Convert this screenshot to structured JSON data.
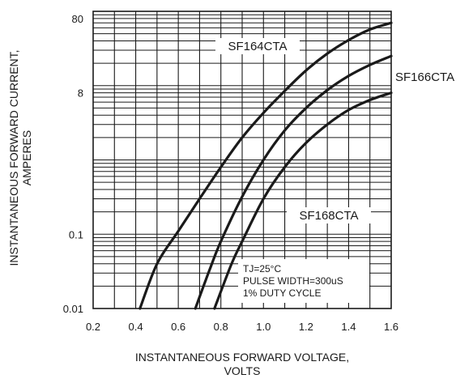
{
  "chart_data": {
    "type": "line",
    "xlabel_lines": [
      "INSTANTANEOUS FORWARD VOLTAGE,",
      "VOLTS"
    ],
    "ylabel_lines": [
      "INSTANTANEOUS FORWARD CURRENT,",
      "AMPERES"
    ],
    "x_ticks": [
      "0.2",
      "0.4",
      "0.6",
      "0.8",
      "1.0",
      "1.2",
      "1.4",
      "1.6"
    ],
    "x_tick_values": [
      0.2,
      0.4,
      0.6,
      0.8,
      1.0,
      1.2,
      1.4,
      1.6
    ],
    "y_ticks": [
      "80",
      "8",
      "0.1",
      "0.01"
    ],
    "y_tick_values": [
      80,
      8,
      0.1,
      0.01
    ],
    "xlim": [
      0.2,
      1.6
    ],
    "y_scale": "log",
    "grid": true,
    "series": [
      {
        "name": "SF164CTA",
        "points": [
          [
            0.42,
            0.01
          ],
          [
            0.5,
            0.04
          ],
          [
            0.6,
            0.11
          ],
          [
            0.7,
            0.3
          ],
          [
            0.8,
            0.8
          ],
          [
            0.9,
            2.0
          ],
          [
            1.0,
            4.3
          ],
          [
            1.1,
            8.5
          ],
          [
            1.2,
            16
          ],
          [
            1.3,
            27
          ],
          [
            1.4,
            41
          ],
          [
            1.5,
            57
          ],
          [
            1.6,
            70
          ]
        ]
      },
      {
        "name": "SF166CTA",
        "points": [
          [
            0.68,
            0.01
          ],
          [
            0.75,
            0.035
          ],
          [
            0.8,
            0.08
          ],
          [
            0.9,
            0.32
          ],
          [
            1.0,
            1.0
          ],
          [
            1.1,
            2.5
          ],
          [
            1.2,
            5.0
          ],
          [
            1.3,
            8.7
          ],
          [
            1.4,
            13.5
          ],
          [
            1.5,
            19
          ],
          [
            1.6,
            25
          ]
        ]
      },
      {
        "name": "SF168CTA",
        "points": [
          [
            0.77,
            0.01
          ],
          [
            0.85,
            0.04
          ],
          [
            0.9,
            0.08
          ],
          [
            1.0,
            0.3
          ],
          [
            1.1,
            0.8
          ],
          [
            1.2,
            1.7
          ],
          [
            1.3,
            3.0
          ],
          [
            1.4,
            4.7
          ],
          [
            1.5,
            6.4
          ],
          [
            1.6,
            8.0
          ]
        ]
      }
    ],
    "annotation_lines": [
      "TJ=25°C",
      "PULSE WIDTH=300uS",
      "1% DUTY CYCLE"
    ]
  }
}
